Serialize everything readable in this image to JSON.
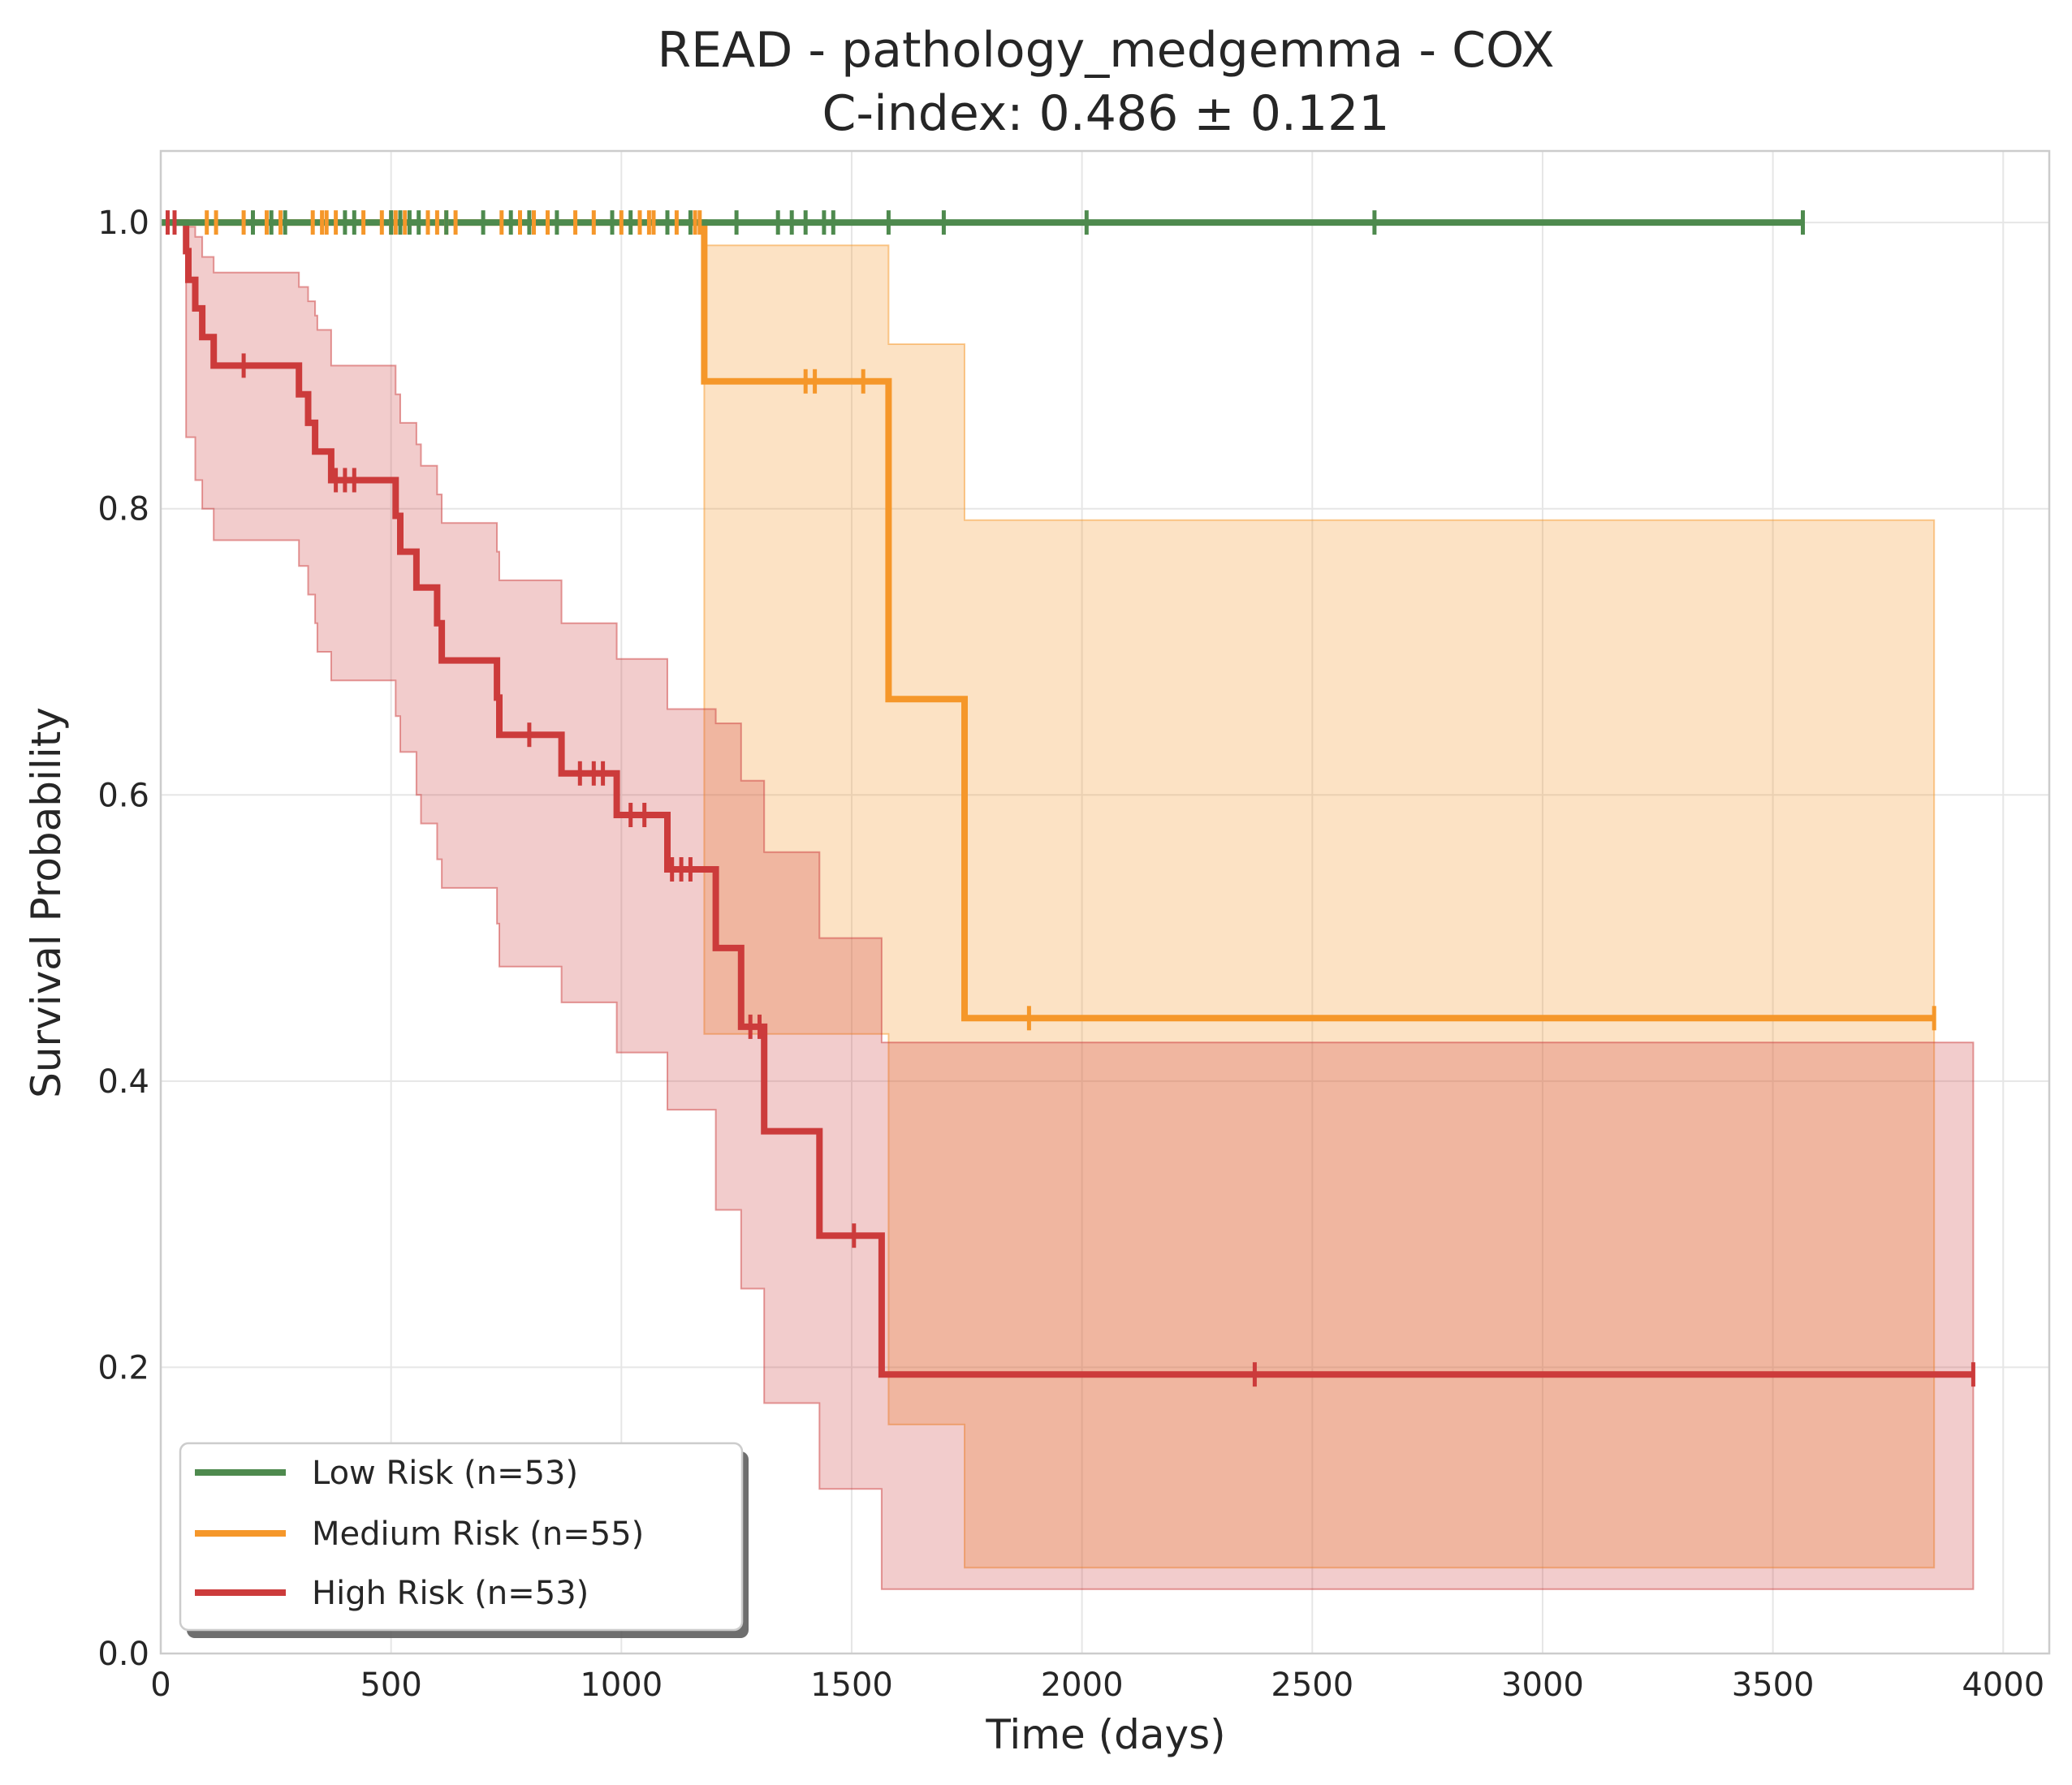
{
  "chart_data": {
    "type": "line",
    "title": "READ - pathology_medgemma - COX",
    "subtitle": "C-index: 0.486 ± 0.121",
    "xlabel": "Time (days)",
    "ylabel": "Survival Probability",
    "xlim": [
      0,
      4100
    ],
    "ylim": [
      0,
      1.05
    ],
    "xticks": [
      0,
      500,
      1000,
      1500,
      2000,
      2500,
      3000,
      3500,
      4000
    ],
    "xtick_labels": [
      "0",
      "500",
      "1000",
      "1500",
      "2000",
      "2500",
      "3000",
      "3500",
      "4000"
    ],
    "yticks": [
      0.0,
      0.2,
      0.4,
      0.6,
      0.8,
      1.0
    ],
    "ytick_labels": [
      "0.0",
      "0.2",
      "0.4",
      "0.6",
      "0.8",
      "1.0"
    ],
    "grid": true,
    "legend_position": "lower-left",
    "series": [
      {
        "name": "Low Risk (n=53)",
        "color": "#4e8a4e",
        "steps": [
          [
            0,
            1.0
          ],
          [
            3565,
            1.0
          ]
        ],
        "ci": [],
        "censors": [
          [
            200,
            1.0
          ],
          [
            240,
            1.0
          ],
          [
            270,
            1.0
          ],
          [
            400,
            1.0
          ],
          [
            420,
            1.0
          ],
          [
            500,
            1.0
          ],
          [
            520,
            1.0
          ],
          [
            540,
            1.0
          ],
          [
            560,
            1.0
          ],
          [
            620,
            1.0
          ],
          [
            700,
            1.0
          ],
          [
            760,
            1.0
          ],
          [
            800,
            1.0
          ],
          [
            860,
            1.0
          ],
          [
            980,
            1.0
          ],
          [
            1020,
            1.0
          ],
          [
            1100,
            1.0
          ],
          [
            1150,
            1.0
          ],
          [
            1250,
            1.0
          ],
          [
            1340,
            1.0
          ],
          [
            1370,
            1.0
          ],
          [
            1400,
            1.0
          ],
          [
            1440,
            1.0
          ],
          [
            1460,
            1.0
          ],
          [
            1580,
            1.0
          ],
          [
            1700,
            1.0
          ],
          [
            2010,
            1.0
          ],
          [
            2635,
            1.0
          ],
          [
            3565,
            1.0
          ]
        ]
      },
      {
        "name": "Medium Risk (n=55)",
        "color": "#f5972a",
        "steps": [
          [
            0,
            1.0
          ],
          [
            1180,
            1.0
          ],
          [
            1180,
            0.889
          ],
          [
            1580,
            0.889
          ],
          [
            1580,
            0.667
          ],
          [
            1745,
            0.667
          ],
          [
            1745,
            0.444
          ],
          [
            3850,
            0.444
          ]
        ],
        "ci": [
          [
            1180,
            0.433,
            0.984
          ],
          [
            1580,
            0.433,
            0.984
          ],
          [
            1580,
            0.16,
            0.915
          ],
          [
            1745,
            0.16,
            0.915
          ],
          [
            1745,
            0.06,
            0.792
          ],
          [
            3850,
            0.06,
            0.792
          ]
        ],
        "censors": [
          [
            100,
            1.0
          ],
          [
            120,
            1.0
          ],
          [
            180,
            1.0
          ],
          [
            230,
            1.0
          ],
          [
            260,
            1.0
          ],
          [
            330,
            1.0
          ],
          [
            350,
            1.0
          ],
          [
            360,
            1.0
          ],
          [
            380,
            1.0
          ],
          [
            440,
            1.0
          ],
          [
            480,
            1.0
          ],
          [
            500,
            1.0
          ],
          [
            510,
            1.0
          ],
          [
            530,
            1.0
          ],
          [
            580,
            1.0
          ],
          [
            600,
            1.0
          ],
          [
            620,
            1.0
          ],
          [
            640,
            1.0
          ],
          [
            740,
            1.0
          ],
          [
            780,
            1.0
          ],
          [
            810,
            1.0
          ],
          [
            840,
            1.0
          ],
          [
            900,
            1.0
          ],
          [
            940,
            1.0
          ],
          [
            1000,
            1.0
          ],
          [
            1040,
            1.0
          ],
          [
            1060,
            1.0
          ],
          [
            1070,
            1.0
          ],
          [
            1120,
            1.0
          ],
          [
            1160,
            1.0
          ],
          [
            1170,
            1.0
          ],
          [
            1400,
            0.889
          ],
          [
            1420,
            0.889
          ],
          [
            1525,
            0.889
          ],
          [
            1885,
            0.444
          ],
          [
            3850,
            0.444
          ]
        ]
      },
      {
        "name": "High Risk (n=53)",
        "color": "#cc3b3b",
        "steps": [
          [
            0,
            1.0
          ],
          [
            55,
            1.0
          ],
          [
            55,
            0.98
          ],
          [
            60,
            0.98
          ],
          [
            60,
            0.96
          ],
          [
            75,
            0.96
          ],
          [
            75,
            0.94
          ],
          [
            90,
            0.94
          ],
          [
            90,
            0.92
          ],
          [
            115,
            0.92
          ],
          [
            115,
            0.9
          ],
          [
            300,
            0.9
          ],
          [
            300,
            0.88
          ],
          [
            320,
            0.88
          ],
          [
            320,
            0.86
          ],
          [
            335,
            0.86
          ],
          [
            335,
            0.84
          ],
          [
            370,
            0.84
          ],
          [
            370,
            0.82
          ],
          [
            510,
            0.82
          ],
          [
            510,
            0.795
          ],
          [
            520,
            0.795
          ],
          [
            520,
            0.77
          ],
          [
            555,
            0.77
          ],
          [
            555,
            0.745
          ],
          [
            600,
            0.745
          ],
          [
            600,
            0.72
          ],
          [
            610,
            0.72
          ],
          [
            610,
            0.694
          ],
          [
            730,
            0.694
          ],
          [
            730,
            0.668
          ],
          [
            735,
            0.668
          ],
          [
            735,
            0.642
          ],
          [
            870,
            0.642
          ],
          [
            870,
            0.615
          ],
          [
            990,
            0.615
          ],
          [
            990,
            0.586
          ],
          [
            1100,
            0.586
          ],
          [
            1100,
            0.548
          ],
          [
            1205,
            0.548
          ],
          [
            1205,
            0.493
          ],
          [
            1260,
            0.493
          ],
          [
            1260,
            0.438
          ],
          [
            1310,
            0.438
          ],
          [
            1310,
            0.365
          ],
          [
            1430,
            0.365
          ],
          [
            1430,
            0.292
          ],
          [
            1565,
            0.292
          ],
          [
            1565,
            0.195
          ],
          [
            3935,
            0.195
          ]
        ],
        "ci": [
          [
            55,
            0.85,
            0.997
          ],
          [
            75,
            0.85,
            0.997
          ],
          [
            75,
            0.82,
            0.99
          ],
          [
            90,
            0.82,
            0.99
          ],
          [
            90,
            0.8,
            0.976
          ],
          [
            115,
            0.8,
            0.976
          ],
          [
            115,
            0.778,
            0.965
          ],
          [
            300,
            0.778,
            0.965
          ],
          [
            300,
            0.76,
            0.955
          ],
          [
            320,
            0.76,
            0.955
          ],
          [
            320,
            0.74,
            0.945
          ],
          [
            335,
            0.74,
            0.945
          ],
          [
            335,
            0.72,
            0.935
          ],
          [
            340,
            0.72,
            0.935
          ],
          [
            340,
            0.7,
            0.925
          ],
          [
            370,
            0.7,
            0.925
          ],
          [
            370,
            0.68,
            0.9
          ],
          [
            510,
            0.68,
            0.9
          ],
          [
            510,
            0.655,
            0.88
          ],
          [
            520,
            0.655,
            0.88
          ],
          [
            520,
            0.63,
            0.86
          ],
          [
            555,
            0.63,
            0.86
          ],
          [
            555,
            0.6,
            0.845
          ],
          [
            565,
            0.6,
            0.845
          ],
          [
            565,
            0.58,
            0.83
          ],
          [
            600,
            0.58,
            0.83
          ],
          [
            600,
            0.555,
            0.81
          ],
          [
            610,
            0.555,
            0.81
          ],
          [
            610,
            0.535,
            0.79
          ],
          [
            730,
            0.535,
            0.79
          ],
          [
            730,
            0.51,
            0.77
          ],
          [
            735,
            0.51,
            0.77
          ],
          [
            735,
            0.48,
            0.75
          ],
          [
            870,
            0.48,
            0.75
          ],
          [
            870,
            0.455,
            0.72
          ],
          [
            990,
            0.455,
            0.72
          ],
          [
            990,
            0.42,
            0.695
          ],
          [
            1100,
            0.42,
            0.695
          ],
          [
            1100,
            0.38,
            0.66
          ],
          [
            1205,
            0.38,
            0.66
          ],
          [
            1205,
            0.31,
            0.65
          ],
          [
            1260,
            0.31,
            0.65
          ],
          [
            1260,
            0.255,
            0.61
          ],
          [
            1310,
            0.255,
            0.61
          ],
          [
            1310,
            0.175,
            0.56
          ],
          [
            1430,
            0.175,
            0.56
          ],
          [
            1430,
            0.115,
            0.5
          ],
          [
            1565,
            0.115,
            0.5
          ],
          [
            1565,
            0.045,
            0.427
          ],
          [
            3935,
            0.045,
            0.427
          ]
        ],
        "censors": [
          [
            15,
            1.0
          ],
          [
            30,
            1.0
          ],
          [
            180,
            0.9
          ],
          [
            380,
            0.82
          ],
          [
            400,
            0.82
          ],
          [
            420,
            0.82
          ],
          [
            800,
            0.642
          ],
          [
            910,
            0.615
          ],
          [
            940,
            0.615
          ],
          [
            960,
            0.615
          ],
          [
            1020,
            0.586
          ],
          [
            1050,
            0.586
          ],
          [
            1110,
            0.548
          ],
          [
            1130,
            0.548
          ],
          [
            1150,
            0.548
          ],
          [
            1280,
            0.438
          ],
          [
            1300,
            0.438
          ],
          [
            1505,
            0.292
          ],
          [
            2375,
            0.195
          ],
          [
            3935,
            0.195
          ]
        ]
      }
    ]
  }
}
